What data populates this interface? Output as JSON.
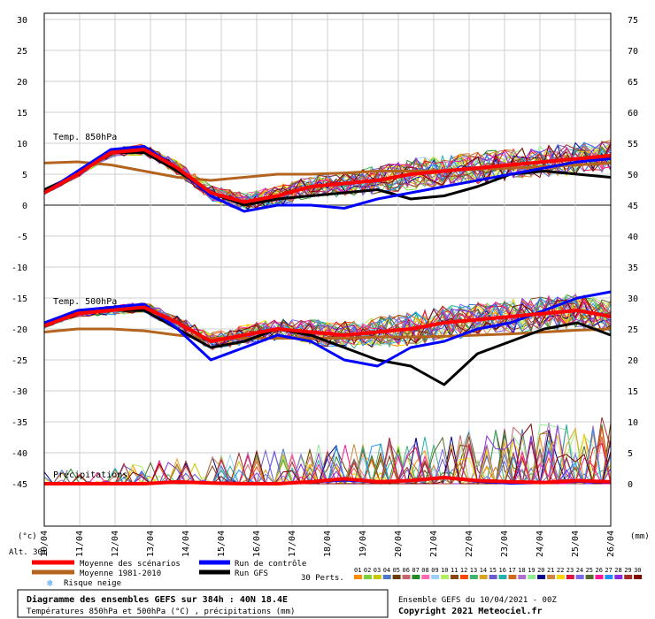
{
  "chart_data": {
    "type": "line",
    "left_axis": {
      "unit": "(°c)",
      "ticks": [
        30,
        25,
        20,
        15,
        10,
        5,
        0,
        -5,
        -10,
        -15,
        -20,
        -25,
        -30,
        -35,
        -40,
        -45
      ],
      "range": [
        -45,
        30
      ]
    },
    "right_axis": {
      "unit": "(mm)",
      "ticks": [
        75,
        70,
        65,
        60,
        55,
        50,
        45,
        40,
        35,
        30,
        25,
        20,
        15,
        10,
        5,
        0
      ],
      "range": [
        0,
        75
      ]
    },
    "dates": [
      "10/04",
      "11/04",
      "12/04",
      "13/04",
      "14/04",
      "15/04",
      "16/04",
      "17/04",
      "18/04",
      "19/04",
      "20/04",
      "21/04",
      "22/04",
      "23/04",
      "24/04",
      "25/04",
      "26/04"
    ],
    "panel_labels": {
      "t850": "Temp. 850hPa",
      "t500": "Temp. 500hPa",
      "precip": "Précipitations"
    },
    "altitude": "Alt. 30m",
    "series": {
      "t850_mean": [
        2,
        5,
        8.5,
        9,
        6,
        2,
        0.5,
        1.5,
        3,
        3.5,
        4,
        5,
        5.5,
        6,
        6.5,
        7,
        7.5,
        8
      ],
      "t850_climo": [
        6.8,
        7,
        6.5,
        5.5,
        4.5,
        4,
        4.5,
        5,
        5,
        5.2,
        5.5,
        5.5,
        5.6,
        5.8,
        6,
        6.2,
        6.5,
        6.8
      ],
      "t850_control": [
        2,
        5.5,
        9,
        9.5,
        6,
        1.5,
        -1,
        0,
        0,
        -0.5,
        1,
        2,
        3,
        4,
        5,
        6,
        7,
        7.5
      ],
      "t850_gfs": [
        2.5,
        5,
        8.5,
        8.5,
        5.5,
        2,
        0,
        1,
        1.5,
        2,
        2.5,
        1,
        1.5,
        3,
        5,
        5.5,
        5,
        4.5
      ],
      "t500_mean": [
        -19.5,
        -17.5,
        -17,
        -16.5,
        -19,
        -22,
        -21,
        -20,
        -20.5,
        -21,
        -20.5,
        -20,
        -19,
        -18.5,
        -18,
        -17.5,
        -17,
        -18
      ],
      "t500_climo": [
        -20.5,
        -20,
        -20,
        -20.3,
        -21,
        -21.5,
        -21.5,
        -21.5,
        -21.5,
        -21.5,
        -21.3,
        -21.3,
        -21.2,
        -21,
        -20.8,
        -20.5,
        -20.2,
        -20
      ],
      "t500_control": [
        -19,
        -17,
        -16.5,
        -16,
        -20,
        -25,
        -23,
        -21,
        -22,
        -25,
        -26,
        -23,
        -22,
        -20,
        -19,
        -17,
        -15,
        -14
      ],
      "t500_gfs": [
        -19,
        -17.5,
        -17,
        -17,
        -20,
        -23,
        -22,
        -20,
        -21,
        -23,
        -25,
        -26,
        -29,
        -24,
        -22,
        -20,
        -19,
        -21
      ],
      "precip_mean": [
        0,
        0,
        0,
        0,
        0.3,
        0.1,
        0,
        0,
        0.3,
        0.8,
        0.3,
        0.5,
        1,
        0.5,
        0.3,
        0.2,
        0.5,
        0.3
      ],
      "precip_control": [
        0,
        0,
        0,
        0,
        0.2,
        0,
        0,
        0,
        0.2,
        0.5,
        0.2,
        0.4,
        1,
        0.3,
        0,
        0.1,
        0.3,
        0.1
      ]
    }
  },
  "legend": {
    "mean": "Moyenne des scénarios",
    "climo": "Moyenne 1981-2010",
    "snow": "Risque neige",
    "control": "Run de contrôle",
    "gfs": "Run GFS",
    "perts_label": "30 Perts.",
    "perts": [
      "01",
      "02",
      "03",
      "04",
      "05",
      "06",
      "07",
      "08",
      "09",
      "10",
      "11",
      "12",
      "13",
      "14",
      "15",
      "16",
      "17",
      "18",
      "19",
      "20",
      "21",
      "22",
      "23",
      "24",
      "25",
      "26",
      "27",
      "28",
      "29",
      "30"
    ],
    "pert_colors": [
      "#ff8c00",
      "#7dcf3a",
      "#c8c800",
      "#4b78c8",
      "#6a3a00",
      "#c8646e",
      "#228b22",
      "#ff69b4",
      "#9bd0ff",
      "#b0f060",
      "#8b4513",
      "#ff4500",
      "#3cb371",
      "#daa520",
      "#6a5acd",
      "#20b2aa",
      "#d2691e",
      "#b06ec8",
      "#90ee90",
      "#00008b",
      "#cd853f",
      "#ffd700",
      "#dc143c",
      "#7b68ee",
      "#556b2f",
      "#ff1493",
      "#1e90ff",
      "#8a2be2",
      "#a52a2a",
      "#800000"
    ]
  },
  "colors": {
    "mean": "#ff0000",
    "climo": "#b4641e",
    "control": "#0000ff",
    "gfs": "#000000"
  },
  "footer": {
    "title": "Diagramme des ensembles GEFS sur 384h : 40N 18.4E",
    "subtitle": "Températures 850hPa et 500hPa (°C) , précipitations (mm)",
    "run": "Ensemble GEFS du 10/04/2021 - 00Z",
    "copyright": "Copyright 2021 Meteociel.fr"
  }
}
